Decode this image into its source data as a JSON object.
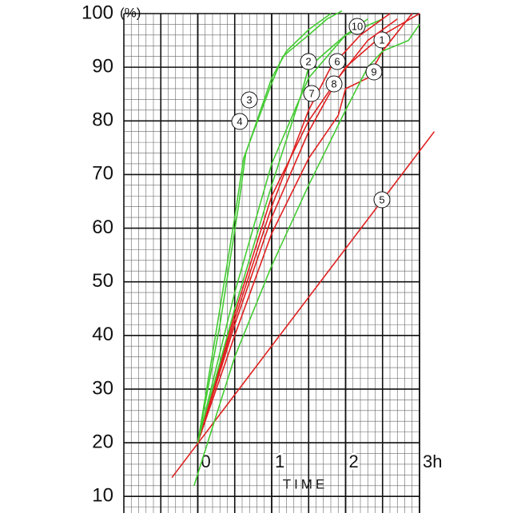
{
  "chart_data": {
    "type": "line",
    "y_unit": "(%)",
    "x_label": "TIME",
    "xlim": [
      -1,
      3
    ],
    "ylim": [
      6.9,
      100
    ],
    "xticks": [
      0,
      1,
      2,
      {
        "value": 3,
        "label": "3h"
      }
    ],
    "yticks": [
      10,
      20,
      30,
      40,
      50,
      60,
      70,
      80,
      90,
      100
    ],
    "grid": true,
    "major_xstep": 0.5,
    "minor_xstep": 0.1,
    "minor_ystep": 2,
    "series": [
      {
        "name": "1",
        "color": "#e02020",
        "x": [
          0,
          0.5,
          1,
          1.5,
          2,
          2.5,
          3
        ],
        "values": [
          20,
          44,
          66,
          80,
          90,
          96,
          100
        ]
      },
      {
        "name": "2",
        "color": "#44cc33",
        "x": [
          0,
          0.5,
          1,
          1.4,
          1.5,
          2,
          2.5
        ],
        "values": [
          20,
          45,
          68,
          85,
          90,
          96,
          99
        ]
      },
      {
        "name": "3",
        "color": "#44cc33",
        "x": [
          0,
          0.3,
          0.5,
          0.62,
          1,
          1.15,
          1.5,
          1.75,
          1.95
        ],
        "values": [
          20,
          45,
          62,
          73,
          87,
          92,
          96,
          99,
          100.5
        ]
      },
      {
        "name": "4",
        "color": "#44cc33",
        "x": [
          0,
          0.3,
          0.55,
          0.65,
          1,
          1.2,
          1.5,
          1.8
        ],
        "values": [
          20,
          42,
          64,
          74,
          88,
          93,
          97,
          100
        ]
      },
      {
        "name": "5",
        "color": "#e02020",
        "x": [
          -0.35,
          3.2
        ],
        "values": [
          13.5,
          78
        ]
      },
      {
        "name": "6",
        "color": "#e02020",
        "x": [
          0,
          0.5,
          1,
          1.5,
          1.8,
          2.2,
          2.6
        ],
        "values": [
          20,
          43,
          64,
          82,
          90,
          96,
          100
        ]
      },
      {
        "name": "7",
        "color": "#e02020",
        "x": [
          0,
          0.5,
          1,
          1.5,
          1.9,
          2.3,
          2.7
        ],
        "values": [
          20,
          42,
          62,
          78,
          88,
          95,
          99
        ]
      },
      {
        "name": "8",
        "color": "#e02020",
        "x": [
          0,
          0.5,
          1,
          1.5,
          1.9,
          2,
          2.3,
          2.5,
          2.9
        ],
        "values": [
          20,
          40,
          59,
          73,
          81,
          86,
          88,
          93,
          100
        ]
      },
      {
        "name": "9",
        "color": "#44cc33",
        "x": [
          -0.05,
          0.5,
          1,
          1.5,
          2,
          2.3,
          2.5,
          2.85,
          3
        ],
        "values": [
          12,
          36,
          53,
          68,
          82,
          90,
          93,
          95,
          98
        ]
      },
      {
        "name": "10",
        "color": "#44cc33",
        "x": [
          0,
          0.5,
          1,
          1.5,
          2,
          2.3
        ],
        "values": [
          20,
          48,
          72,
          88,
          96,
          99
        ]
      }
    ]
  }
}
